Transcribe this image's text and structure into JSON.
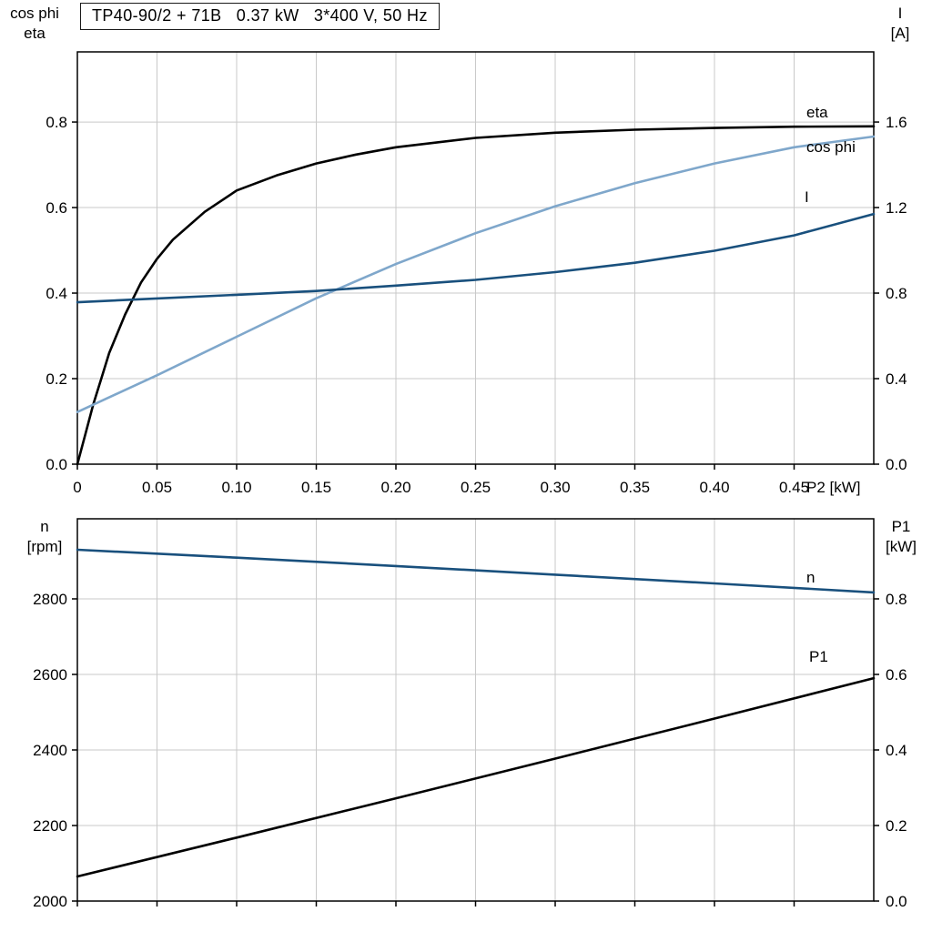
{
  "title": "TP40-90/2 + 71B   0.37 kW   3*400 V, 50 Hz",
  "corner_labels": {
    "top_left": [
      "cos phi",
      "eta"
    ],
    "top_right": [
      "I",
      "[A]"
    ],
    "bottom_left": [
      "n",
      "[rpm]"
    ],
    "bottom_right": [
      "P1",
      "[kW]"
    ]
  },
  "colors": {
    "black_curve": "#000000",
    "light_blue_curve": "#7fa7cb",
    "dark_blue_curve": "#19507d",
    "grid": "#c9c9c9",
    "axis": "#000000"
  },
  "chart_data": [
    {
      "type": "line",
      "title": "TP40-90/2 + 71B   0.37 kW   3*400 V, 50 Hz",
      "xlabel": "P2 [kW]",
      "xlim": [
        0,
        0.5
      ],
      "x_ticks": [
        0,
        0.05,
        0.1,
        0.15,
        0.2,
        0.25,
        0.3,
        0.35,
        0.4,
        0.45
      ],
      "x_tick_labels": [
        "0",
        "0.05",
        "0.10",
        "0.15",
        "0.20",
        "0.25",
        "0.30",
        "0.35",
        "0.40",
        "0.45"
      ],
      "grid": true,
      "legend_position": "curve-end-labels",
      "left_axis": {
        "title": "cos phi / eta",
        "ylim": [
          0,
          0.964
        ],
        "ticks": [
          0,
          0.2,
          0.4,
          0.6,
          0.8
        ],
        "tick_labels": [
          "0.0",
          "0.2",
          "0.4",
          "0.6",
          "0.8"
        ]
      },
      "right_axis": {
        "title": "I [A]",
        "ylim": [
          0,
          1.928
        ],
        "ticks": [
          0,
          0.4,
          0.8,
          1.2,
          1.6
        ],
        "tick_labels": [
          "0.0",
          "0.4",
          "0.8",
          "1.2",
          "1.6"
        ]
      },
      "series": [
        {
          "name": "eta",
          "axis": "left",
          "color": "#000000",
          "x": [
            0,
            0.005,
            0.01,
            0.015,
            0.02,
            0.03,
            0.04,
            0.05,
            0.06,
            0.08,
            0.1,
            0.125,
            0.15,
            0.175,
            0.2,
            0.25,
            0.3,
            0.35,
            0.4,
            0.45,
            0.5
          ],
          "y": [
            0,
            0.07,
            0.14,
            0.2,
            0.26,
            0.35,
            0.425,
            0.48,
            0.525,
            0.59,
            0.64,
            0.675,
            0.703,
            0.724,
            0.741,
            0.763,
            0.775,
            0.782,
            0.786,
            0.789,
            0.79
          ]
        },
        {
          "name": "cos phi",
          "axis": "left",
          "color": "#7fa7cb",
          "x": [
            0,
            0.05,
            0.1,
            0.15,
            0.2,
            0.25,
            0.3,
            0.35,
            0.4,
            0.45,
            0.5
          ],
          "y": [
            0.122,
            0.208,
            0.298,
            0.388,
            0.468,
            0.54,
            0.603,
            0.657,
            0.703,
            0.741,
            0.766
          ]
        },
        {
          "name": "I",
          "axis": "right",
          "color": "#19507d",
          "x": [
            0,
            0.05,
            0.1,
            0.15,
            0.2,
            0.25,
            0.3,
            0.35,
            0.4,
            0.45,
            0.5
          ],
          "y": [
            0.757,
            0.775,
            0.792,
            0.81,
            0.835,
            0.862,
            0.898,
            0.942,
            0.998,
            1.07,
            1.17
          ]
        }
      ]
    },
    {
      "type": "line",
      "title": "",
      "xlabel": "",
      "xlim": [
        0,
        0.5
      ],
      "x_ticks": [
        0,
        0.05,
        0.1,
        0.15,
        0.2,
        0.25,
        0.3,
        0.35,
        0.4,
        0.45
      ],
      "x_tick_labels": [],
      "grid": true,
      "legend_position": "curve-end-labels",
      "left_axis": {
        "title": "n [rpm]",
        "ylim": [
          2000,
          3012
        ],
        "ticks": [
          2000,
          2200,
          2400,
          2600,
          2800
        ],
        "tick_labels": [
          "2000",
          "2200",
          "2400",
          "2600",
          "2800"
        ]
      },
      "right_axis": {
        "title": "P1 [kW]",
        "ylim": [
          0,
          1.012
        ],
        "ticks": [
          0,
          0.2,
          0.4,
          0.6,
          0.8
        ],
        "tick_labels": [
          "0.0",
          "0.2",
          "0.4",
          "0.6",
          "0.8"
        ]
      },
      "series": [
        {
          "name": "n",
          "axis": "left",
          "color": "#19507d",
          "x": [
            0,
            0.1,
            0.2,
            0.3,
            0.4,
            0.5
          ],
          "y": [
            2930,
            2909,
            2887,
            2864,
            2841,
            2817
          ]
        },
        {
          "name": "P1",
          "axis": "right",
          "color": "#000000",
          "x": [
            0,
            0.1,
            0.2,
            0.3,
            0.4,
            0.5
          ],
          "y": [
            0.065,
            0.168,
            0.272,
            0.377,
            0.483,
            0.59
          ]
        }
      ]
    }
  ]
}
